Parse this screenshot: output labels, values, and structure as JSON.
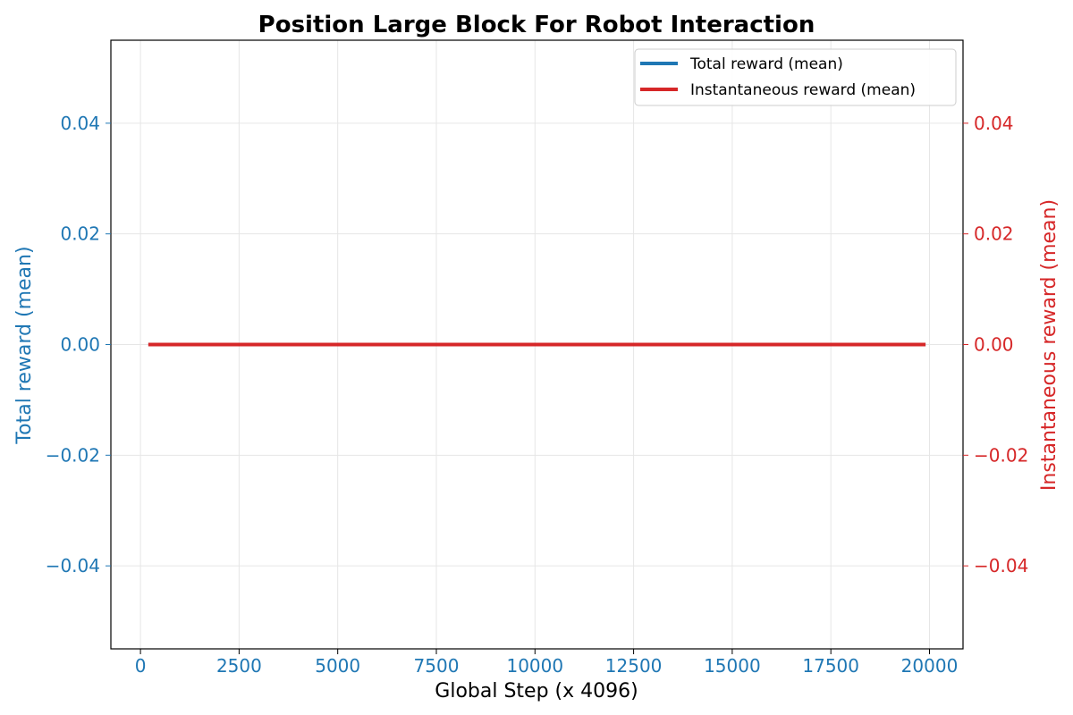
{
  "chart_data": {
    "type": "line",
    "title": "Position Large Block For Robot Interaction",
    "xlabel": "Global Step (x 4096)",
    "ylabel_left": "Total reward (mean)",
    "ylabel_right": "Instantaneous reward (mean)",
    "xlim": [
      -750,
      20850
    ],
    "ylim_left": [
      -0.055,
      0.055
    ],
    "ylim_right": [
      -0.055,
      0.055
    ],
    "x_ticks": [
      0,
      2500,
      5000,
      7500,
      10000,
      12500,
      15000,
      17500,
      20000
    ],
    "x_tick_labels": [
      "0",
      "2500",
      "5000",
      "7500",
      "10000",
      "12500",
      "15000",
      "17500",
      "20000"
    ],
    "y_ticks_left": [
      -0.04,
      -0.02,
      0.0,
      0.02,
      0.04
    ],
    "y_tick_labels_left": [
      "−0.04",
      "−0.02",
      "0.00",
      "0.02",
      "0.04"
    ],
    "y_ticks_right": [
      -0.04,
      -0.02,
      0.0,
      0.02,
      0.04
    ],
    "y_tick_labels_right": [
      "−0.04",
      "−0.02",
      "0.00",
      "0.02",
      "0.04"
    ],
    "grid": true,
    "legend_position": "top-right",
    "series": [
      {
        "name": "Total reward (mean)",
        "axis": "left",
        "color": "#1f77b4",
        "x": [
          200,
          19900
        ],
        "y": [
          0.0,
          0.0
        ]
      },
      {
        "name": "Instantaneous reward (mean)",
        "axis": "right",
        "color": "#d62728",
        "x": [
          200,
          19900
        ],
        "y": [
          0.0,
          0.0
        ]
      }
    ],
    "colors": {
      "left_axis": "#1f77b4",
      "right_axis": "#d62728"
    }
  }
}
